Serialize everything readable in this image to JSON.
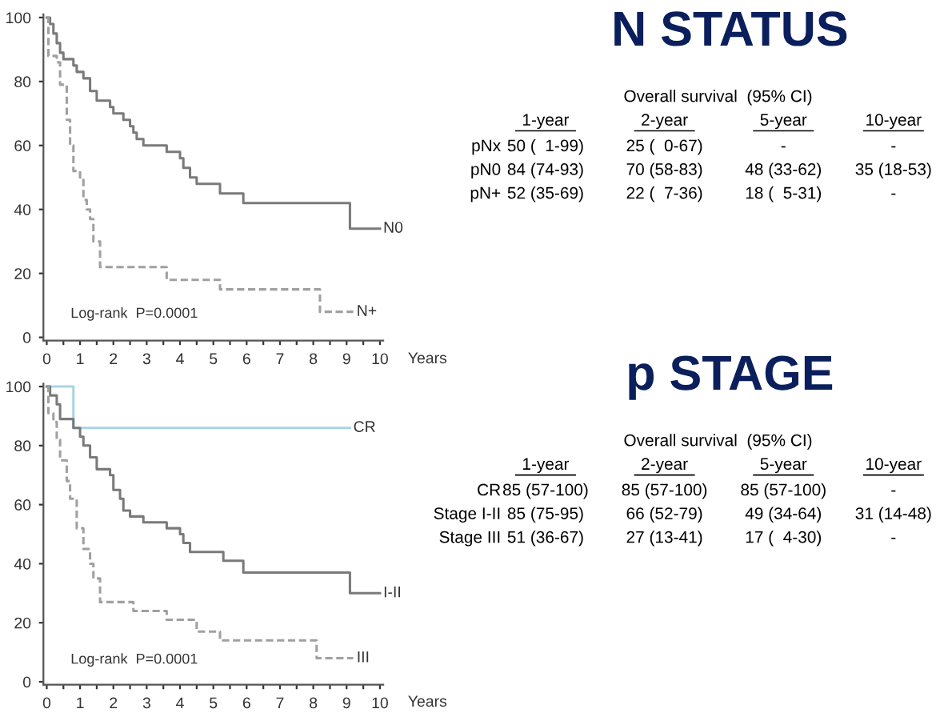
{
  "chart_data": [
    {
      "type": "step",
      "xlabel": "Years",
      "xlim": [
        -0.1,
        10.1
      ],
      "ylim": [
        -1,
        101
      ],
      "xticks": [
        0,
        {
          "value": 0.5,
          "label": null
        },
        1,
        {
          "value": 1.5,
          "label": null
        },
        2,
        {
          "value": 2.5,
          "label": null
        },
        3,
        {
          "value": 3.5,
          "label": null
        },
        4,
        {
          "value": 4.5,
          "label": null
        },
        5,
        {
          "value": 5.5,
          "label": null
        },
        6,
        {
          "value": 6.5,
          "label": null
        },
        7,
        {
          "value": 7.5,
          "label": null
        },
        8,
        {
          "value": 8.5,
          "label": null
        },
        9,
        {
          "value": 9.5,
          "label": null
        },
        10
      ],
      "yticks": [
        0,
        20,
        40,
        60,
        80,
        100
      ],
      "grid": false,
      "legend": false,
      "marker": "none",
      "annotations": [
        "Log-rank  P=0.0001"
      ],
      "series": [
        {
          "name": "N0",
          "color": "#7a7a7a",
          "line_style": "solid",
          "x": [
            0,
            0.1,
            0.2,
            0.3,
            0.4,
            0.5,
            0.8,
            0.9,
            1.1,
            1.3,
            1.5,
            1.9,
            2.0,
            2.3,
            2.5,
            2.6,
            2.7,
            2.9,
            3.6,
            4.0,
            4.1,
            4.3,
            4.5,
            5.2,
            5.9,
            9.1,
            10
          ],
          "values": [
            100,
            98,
            95,
            92,
            89,
            87,
            85,
            83,
            81,
            77,
            74,
            72,
            70,
            68,
            66,
            64,
            62,
            60,
            58,
            56,
            53,
            50,
            48,
            45,
            42,
            34,
            34
          ]
        },
        {
          "name": "N+",
          "color": "#a0a0a0",
          "line_style": "dashed",
          "x": [
            0,
            0.05,
            0.3,
            0.4,
            0.6,
            0.7,
            0.8,
            1.0,
            1.1,
            1.2,
            1.3,
            1.4,
            1.6,
            3.6,
            5.2,
            8.2,
            9.2
          ],
          "values": [
            100,
            88,
            86,
            79,
            68,
            60,
            52,
            50,
            43,
            40,
            37,
            30,
            22,
            18,
            15,
            8,
            8
          ]
        }
      ]
    },
    {
      "type": "other",
      "title": "N STATUS",
      "subtitle": "Overall survival  (95% CI)",
      "categories": [
        "1-year",
        "2-year",
        "5-year",
        "10-year"
      ],
      "y_categories": [
        "pNx",
        "pN0",
        "pN+"
      ],
      "cell_labels": [
        [
          "50 (  1-99)",
          "25 (  0-67)",
          "-",
          "-"
        ],
        [
          "84 (74-93)",
          "70 (58-83)",
          "48 (33-62)",
          "35 (18-53)"
        ],
        [
          "52 (35-69)",
          "22 (  7-36)",
          "18 (  5-31)",
          "-"
        ]
      ]
    },
    {
      "type": "step",
      "xlabel": "Years",
      "xlim": [
        -0.1,
        10.1
      ],
      "ylim": [
        -1,
        101
      ],
      "xticks": [
        0,
        {
          "value": 0.5,
          "label": null
        },
        1,
        {
          "value": 1.5,
          "label": null
        },
        2,
        {
          "value": 2.5,
          "label": null
        },
        3,
        {
          "value": 3.5,
          "label": null
        },
        4,
        {
          "value": 4.5,
          "label": null
        },
        5,
        {
          "value": 5.5,
          "label": null
        },
        6,
        {
          "value": 6.5,
          "label": null
        },
        7,
        {
          "value": 7.5,
          "label": null
        },
        8,
        {
          "value": 8.5,
          "label": null
        },
        9,
        {
          "value": 9.5,
          "label": null
        },
        10
      ],
      "yticks": [
        0,
        20,
        40,
        60,
        80,
        100
      ],
      "grid": false,
      "legend": false,
      "marker": "none",
      "annotations": [
        "Log-rank  P=0.0001"
      ],
      "series": [
        {
          "name": "CR",
          "color": "#a8d4e6",
          "line_style": "solid",
          "x": [
            0,
            0.8,
            9.1
          ],
          "values": [
            100,
            86,
            86
          ]
        },
        {
          "name": "I-II",
          "color": "#7a7a7a",
          "line_style": "solid",
          "x": [
            0,
            0.1,
            0.3,
            0.4,
            0.8,
            1.0,
            1.1,
            1.3,
            1.5,
            1.9,
            2.0,
            2.2,
            2.3,
            2.5,
            2.9,
            3.6,
            4.0,
            4.1,
            4.3,
            5.3,
            5.9,
            9.1,
            10
          ],
          "values": [
            100,
            97,
            94,
            89,
            86,
            83,
            80,
            76,
            72,
            70,
            65,
            62,
            58,
            56,
            54,
            52,
            50,
            47,
            44,
            41,
            37,
            30,
            30
          ]
        },
        {
          "name": "III",
          "color": "#a0a0a0",
          "line_style": "dashed",
          "x": [
            0,
            0.05,
            0.2,
            0.3,
            0.4,
            0.6,
            0.7,
            0.9,
            1.1,
            1.3,
            1.4,
            1.6,
            2.6,
            3.6,
            4.5,
            5.2,
            8.1,
            9.2
          ],
          "values": [
            100,
            91,
            88,
            82,
            75,
            68,
            62,
            52,
            45,
            40,
            35,
            27,
            24,
            21,
            17,
            14,
            8,
            8
          ]
        }
      ]
    },
    {
      "type": "other",
      "title": "p STAGE",
      "subtitle": "Overall survival  (95% CI)",
      "categories": [
        "1-year",
        "2-year",
        "5-year",
        "10-year"
      ],
      "y_categories": [
        "CR",
        "Stage I-II",
        "Stage III"
      ],
      "cell_labels": [
        [
          "85 (57-100)",
          "85 (57-100)",
          "85 (57-100)",
          "-"
        ],
        [
          "85 (75-95)",
          "66 (52-79)",
          "49 (34-64)",
          "31 (14-48)"
        ],
        [
          "51 (36-67)",
          "27 (13-41)",
          "17 (  4-30)",
          "-"
        ]
      ]
    }
  ]
}
